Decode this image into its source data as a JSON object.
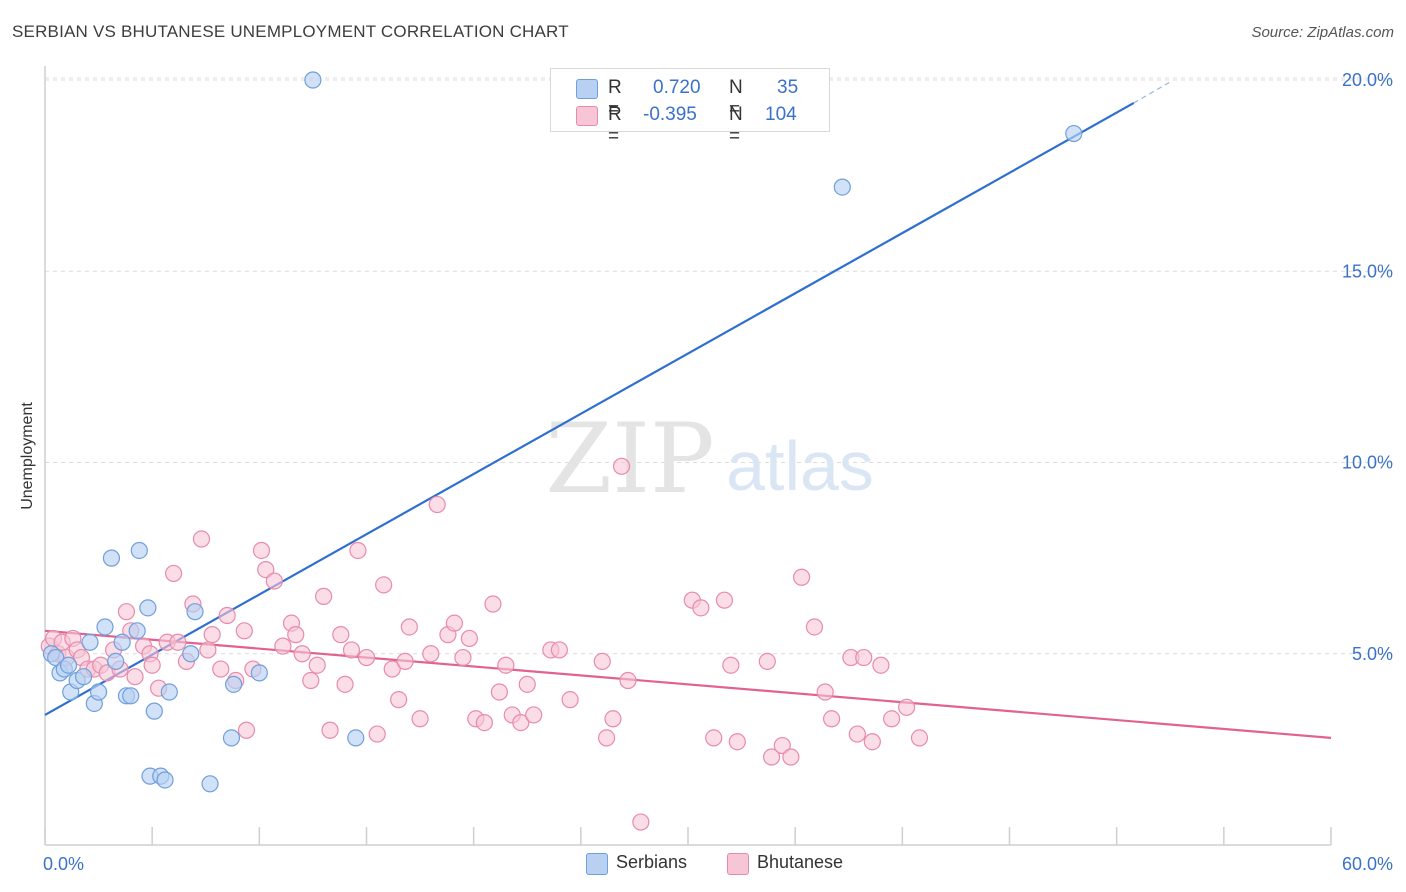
{
  "title": "SERBIAN VS BHUTANESE UNEMPLOYMENT CORRELATION CHART",
  "source": "Source: ZipAtlas.com",
  "watermark": {
    "zip": "ZIP",
    "atlas": "atlas"
  },
  "legend": {
    "r_label": "R =",
    "n_label": "N =",
    "rows": [
      {
        "r": "0.720",
        "n": "35"
      },
      {
        "r": "-0.395",
        "n": "104"
      }
    ]
  },
  "colors": {
    "serbians_fill": "#b8d1f3",
    "serbians_stroke": "#6f9fdc",
    "serbians_line": "#2f6fcf",
    "bhutanese_fill": "#f7c6d6",
    "bhutanese_stroke": "#e98aab",
    "bhutanese_line": "#e06291",
    "axis_text": "#3b72c8",
    "grid": "#dcdcdc"
  },
  "chart_data": {
    "type": "scatter",
    "title": "SERBIAN VS BHUTANESE UNEMPLOYMENT CORRELATION CHART",
    "xlabel": "",
    "ylabel": "Unemployment",
    "xlim": [
      0,
      60
    ],
    "ylim": [
      0,
      20
    ],
    "x_tick_labels": [
      "0.0%",
      "60.0%"
    ],
    "y_ticks": [
      5,
      10,
      15,
      20
    ],
    "y_tick_labels": [
      "5.0%",
      "10.0%",
      "15.0%",
      "20.0%"
    ],
    "grid": true,
    "series": [
      {
        "name": "Serbians",
        "r": 0.72,
        "n": 35,
        "trend": {
          "x0": 0,
          "y0": 3.4,
          "x1": 50.8,
          "y1": 19.4,
          "dashed_to_x": 52.5,
          "dashed_to_y": 19.95
        },
        "points": [
          [
            0.3,
            5.0
          ],
          [
            0.5,
            4.9
          ],
          [
            0.7,
            4.5
          ],
          [
            0.9,
            4.6
          ],
          [
            1.1,
            4.7
          ],
          [
            1.2,
            4.0
          ],
          [
            1.5,
            4.3
          ],
          [
            1.8,
            4.4
          ],
          [
            2.1,
            5.3
          ],
          [
            2.3,
            3.7
          ],
          [
            2.5,
            4.0
          ],
          [
            2.8,
            5.7
          ],
          [
            3.1,
            7.5
          ],
          [
            3.3,
            4.8
          ],
          [
            3.6,
            5.3
          ],
          [
            3.8,
            3.9
          ],
          [
            4.0,
            3.9
          ],
          [
            4.3,
            5.6
          ],
          [
            4.4,
            7.7
          ],
          [
            4.8,
            6.2
          ],
          [
            4.9,
            1.8
          ],
          [
            5.1,
            3.5
          ],
          [
            5.4,
            1.8
          ],
          [
            5.6,
            1.7
          ],
          [
            5.8,
            4.0
          ],
          [
            6.8,
            5.0
          ],
          [
            7.0,
            6.1
          ],
          [
            7.7,
            1.6
          ],
          [
            8.7,
            2.8
          ],
          [
            8.8,
            4.2
          ],
          [
            10.0,
            4.5
          ],
          [
            12.5,
            20.0
          ],
          [
            14.5,
            2.8
          ],
          [
            37.2,
            17.2
          ],
          [
            48.0,
            18.6
          ]
        ]
      },
      {
        "name": "Bhutanese",
        "r": -0.395,
        "n": 104,
        "trend": {
          "x0": 0,
          "y0": 5.6,
          "x1": 60,
          "y1": 2.8
        },
        "points": [
          [
            0.2,
            5.2
          ],
          [
            0.4,
            5.4
          ],
          [
            0.6,
            5.0
          ],
          [
            0.8,
            5.3
          ],
          [
            1.0,
            4.9
          ],
          [
            1.3,
            5.4
          ],
          [
            1.5,
            5.1
          ],
          [
            1.7,
            4.9
          ],
          [
            2.0,
            4.6
          ],
          [
            2.3,
            4.6
          ],
          [
            2.6,
            4.7
          ],
          [
            2.9,
            4.5
          ],
          [
            3.2,
            5.1
          ],
          [
            3.5,
            4.6
          ],
          [
            3.8,
            6.1
          ],
          [
            4.0,
            5.6
          ],
          [
            4.2,
            4.4
          ],
          [
            4.6,
            5.2
          ],
          [
            4.9,
            5.0
          ],
          [
            5.0,
            4.7
          ],
          [
            5.3,
            4.1
          ],
          [
            5.7,
            5.3
          ],
          [
            6.0,
            7.1
          ],
          [
            6.2,
            5.3
          ],
          [
            6.6,
            4.8
          ],
          [
            6.9,
            6.3
          ],
          [
            7.3,
            8.0
          ],
          [
            7.6,
            5.1
          ],
          [
            7.8,
            5.5
          ],
          [
            8.2,
            4.6
          ],
          [
            8.5,
            6.0
          ],
          [
            8.9,
            4.3
          ],
          [
            9.3,
            5.6
          ],
          [
            9.4,
            3.0
          ],
          [
            9.7,
            4.6
          ],
          [
            10.1,
            7.7
          ],
          [
            10.3,
            7.2
          ],
          [
            10.7,
            6.9
          ],
          [
            11.1,
            5.2
          ],
          [
            11.5,
            5.8
          ],
          [
            11.7,
            5.5
          ],
          [
            12.0,
            5.0
          ],
          [
            12.4,
            4.3
          ],
          [
            12.7,
            4.7
          ],
          [
            13.0,
            6.5
          ],
          [
            13.3,
            3.0
          ],
          [
            13.8,
            5.5
          ],
          [
            14.0,
            4.2
          ],
          [
            14.3,
            5.1
          ],
          [
            14.6,
            7.7
          ],
          [
            15.0,
            4.9
          ],
          [
            15.5,
            2.9
          ],
          [
            15.8,
            6.8
          ],
          [
            16.2,
            4.6
          ],
          [
            16.5,
            3.8
          ],
          [
            16.8,
            4.8
          ],
          [
            17.0,
            5.7
          ],
          [
            17.5,
            3.3
          ],
          [
            18.0,
            5.0
          ],
          [
            18.3,
            8.9
          ],
          [
            18.8,
            5.5
          ],
          [
            19.1,
            5.8
          ],
          [
            19.5,
            4.9
          ],
          [
            19.8,
            5.4
          ],
          [
            20.1,
            3.3
          ],
          [
            20.5,
            3.2
          ],
          [
            20.9,
            6.3
          ],
          [
            21.2,
            4.0
          ],
          [
            21.5,
            4.7
          ],
          [
            21.8,
            3.4
          ],
          [
            22.2,
            3.2
          ],
          [
            22.5,
            4.2
          ],
          [
            22.8,
            3.4
          ],
          [
            23.6,
            5.1
          ],
          [
            24.0,
            5.1
          ],
          [
            24.5,
            3.8
          ],
          [
            26.0,
            4.8
          ],
          [
            26.2,
            2.8
          ],
          [
            26.5,
            3.3
          ],
          [
            26.9,
            9.9
          ],
          [
            27.2,
            4.3
          ],
          [
            27.8,
            0.6
          ],
          [
            30.2,
            6.4
          ],
          [
            30.6,
            6.2
          ],
          [
            31.2,
            2.8
          ],
          [
            31.7,
            6.4
          ],
          [
            32.0,
            4.7
          ],
          [
            32.3,
            2.7
          ],
          [
            33.7,
            4.8
          ],
          [
            33.9,
            2.3
          ],
          [
            34.4,
            2.6
          ],
          [
            34.8,
            2.3
          ],
          [
            35.3,
            7.0
          ],
          [
            35.9,
            5.7
          ],
          [
            36.4,
            4.0
          ],
          [
            36.7,
            3.3
          ],
          [
            37.6,
            4.9
          ],
          [
            37.9,
            2.9
          ],
          [
            38.2,
            4.9
          ],
          [
            38.6,
            2.7
          ],
          [
            39.0,
            4.7
          ],
          [
            39.5,
            3.3
          ],
          [
            40.2,
            3.6
          ],
          [
            40.8,
            2.8
          ]
        ]
      }
    ]
  }
}
